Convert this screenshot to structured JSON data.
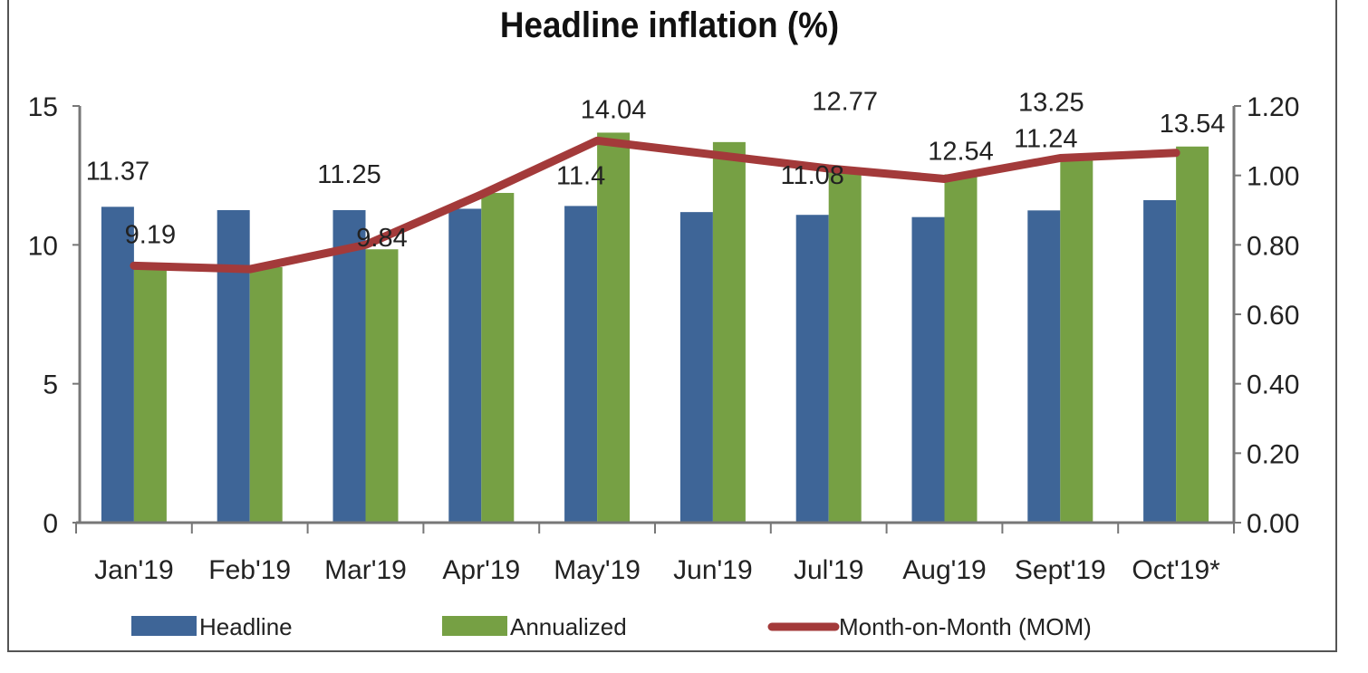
{
  "chart_data": {
    "type": "bar",
    "title": "Headline inflation (%)",
    "categories": [
      "Jan'19",
      "Feb'19",
      "Mar'19",
      "Apr'19",
      "May'19",
      "Jun'19",
      "Jul'19",
      "Aug'19",
      "Sept'19",
      "Oct'19*"
    ],
    "y_left": {
      "range": [
        0,
        15
      ],
      "ticks": [
        "0",
        "5",
        "10",
        "15"
      ]
    },
    "y_right": {
      "range": [
        0,
        1.2
      ],
      "ticks": [
        "0.00",
        "0.20",
        "0.40",
        "0.60",
        "0.80",
        "1.00",
        "1.20"
      ]
    },
    "grid": false,
    "legend_placement": "bottom",
    "series": [
      {
        "name": "Headline",
        "type": "bar",
        "axis": "left",
        "color": "#3e6597",
        "values": [
          11.37,
          11.25,
          11.25,
          11.3,
          11.4,
          11.18,
          11.08,
          11.0,
          11.24,
          11.61
        ],
        "labels": [
          "11.37",
          "",
          "11.25",
          "",
          "11.4",
          "",
          "11.08",
          "",
          "11.24",
          ""
        ]
      },
      {
        "name": "Annualized",
        "type": "bar",
        "axis": "left",
        "color": "#76a044",
        "values": [
          9.19,
          9.2,
          9.84,
          11.87,
          14.04,
          13.7,
          12.77,
          12.54,
          13.25,
          13.54
        ],
        "labels": [
          "9.19",
          "",
          "9.84",
          "",
          "14.04",
          "",
          "12.77",
          "12.54",
          "13.25",
          "13.54"
        ]
      },
      {
        "name": "Month-on-Month (MOM)",
        "type": "line",
        "axis": "right",
        "color": "#a33a3a",
        "values": [
          0.74,
          0.73,
          0.8,
          0.945,
          1.1,
          1.06,
          1.02,
          0.99,
          1.05,
          1.065
        ]
      }
    ]
  }
}
